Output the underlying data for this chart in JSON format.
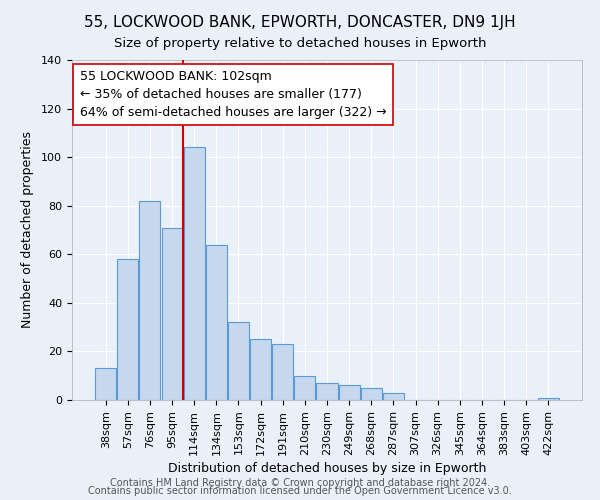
{
  "title1": "55, LOCKWOOD BANK, EPWORTH, DONCASTER, DN9 1JH",
  "title2": "Size of property relative to detached houses in Epworth",
  "xlabel": "Distribution of detached houses by size in Epworth",
  "ylabel": "Number of detached properties",
  "bar_labels": [
    "38sqm",
    "57sqm",
    "76sqm",
    "95sqm",
    "114sqm",
    "134sqm",
    "153sqm",
    "172sqm",
    "191sqm",
    "210sqm",
    "230sqm",
    "249sqm",
    "268sqm",
    "287sqm",
    "307sqm",
    "326sqm",
    "345sqm",
    "364sqm",
    "383sqm",
    "403sqm",
    "422sqm"
  ],
  "bar_values": [
    13,
    58,
    82,
    71,
    104,
    64,
    32,
    25,
    23,
    10,
    7,
    6,
    5,
    3,
    0,
    0,
    0,
    0,
    0,
    0,
    1
  ],
  "bar_color": "#c5d8ed",
  "bar_edge_color": "#5b9bd5",
  "vline_x": 3.5,
  "vline_color": "#cc0000",
  "annotation_text": "55 LOCKWOOD BANK: 102sqm\n← 35% of detached houses are smaller (177)\n64% of semi-detached houses are larger (322) →",
  "annotation_box_edge": "#cc0000",
  "annotation_box_face": "#ffffff",
  "ylim": [
    0,
    140
  ],
  "yticks": [
    0,
    20,
    40,
    60,
    80,
    100,
    120,
    140
  ],
  "footer1": "Contains HM Land Registry data © Crown copyright and database right 2024.",
  "footer2": "Contains public sector information licensed under the Open Government Licence v3.0.",
  "background_color": "#eaf0f8",
  "plot_background": "#eaf0f8",
  "grid_color": "#d0dce8",
  "title1_fontsize": 11,
  "title2_fontsize": 9.5,
  "xlabel_fontsize": 9,
  "ylabel_fontsize": 9,
  "tick_fontsize": 8,
  "annotation_fontsize": 9,
  "footer_fontsize": 7
}
